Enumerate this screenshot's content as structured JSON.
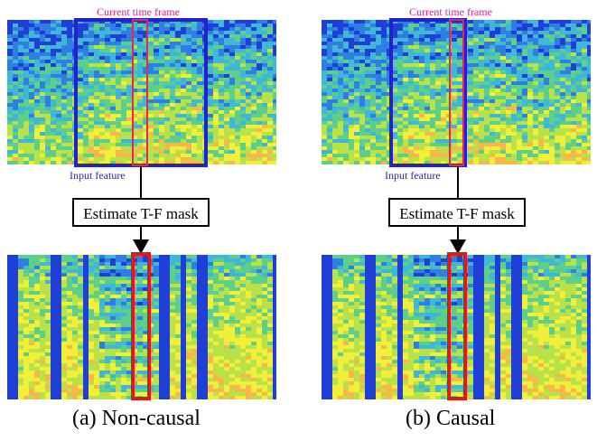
{
  "panels": [
    {
      "id": "non-causal",
      "current_frame_label": "Current time frame",
      "input_feature_label": "Input feature",
      "estimate_label": "Estimate T-F mask",
      "caption": "(a) Non-causal"
    },
    {
      "id": "causal",
      "current_frame_label": "Current time frame",
      "input_feature_label": "Input feature",
      "estimate_label": "Estimate T-F mask",
      "caption": "(b) Causal"
    }
  ],
  "colors": {
    "input_window": "#2222cc",
    "current_frame": "#e02a55",
    "mask_frame": "#e01818",
    "spectrogram_palette": [
      "#1f3fd6",
      "#2f7ee0",
      "#3fb8d8",
      "#5ecf8a",
      "#b9e24a",
      "#f0f03a",
      "#f6b84a"
    ]
  }
}
